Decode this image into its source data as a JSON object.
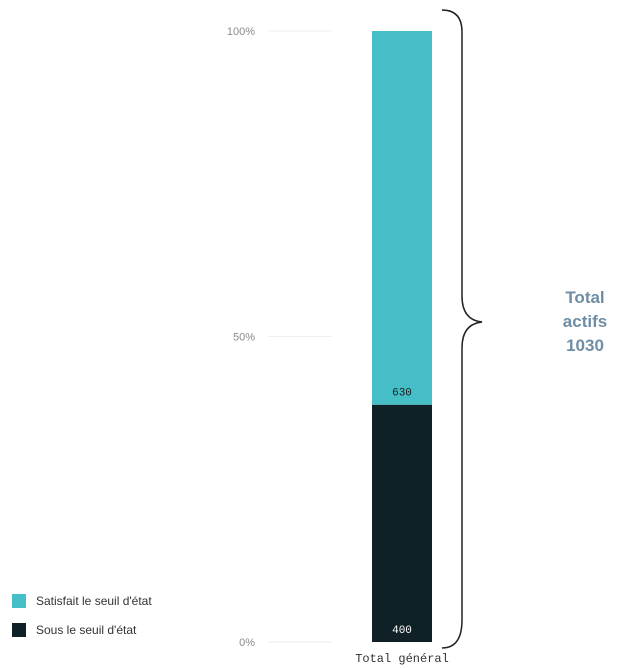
{
  "chart_data": {
    "type": "bar",
    "stacked": true,
    "normalized": true,
    "categories": [
      "Total général"
    ],
    "series": [
      {
        "name": "Sous le seuil d'état",
        "values": [
          400
        ],
        "color": "#0f2027"
      },
      {
        "name": "Satisfait le seuil d'état",
        "values": [
          630
        ],
        "color": "#46bec7"
      }
    ],
    "y_ticks": [
      "0%",
      "50%",
      "100%"
    ],
    "ylim": [
      0,
      100
    ],
    "grid": true,
    "legend": "bottom-left"
  },
  "annotation": {
    "lines": [
      "Total",
      "actifs",
      "1030"
    ],
    "color": "#6f8ea6"
  }
}
